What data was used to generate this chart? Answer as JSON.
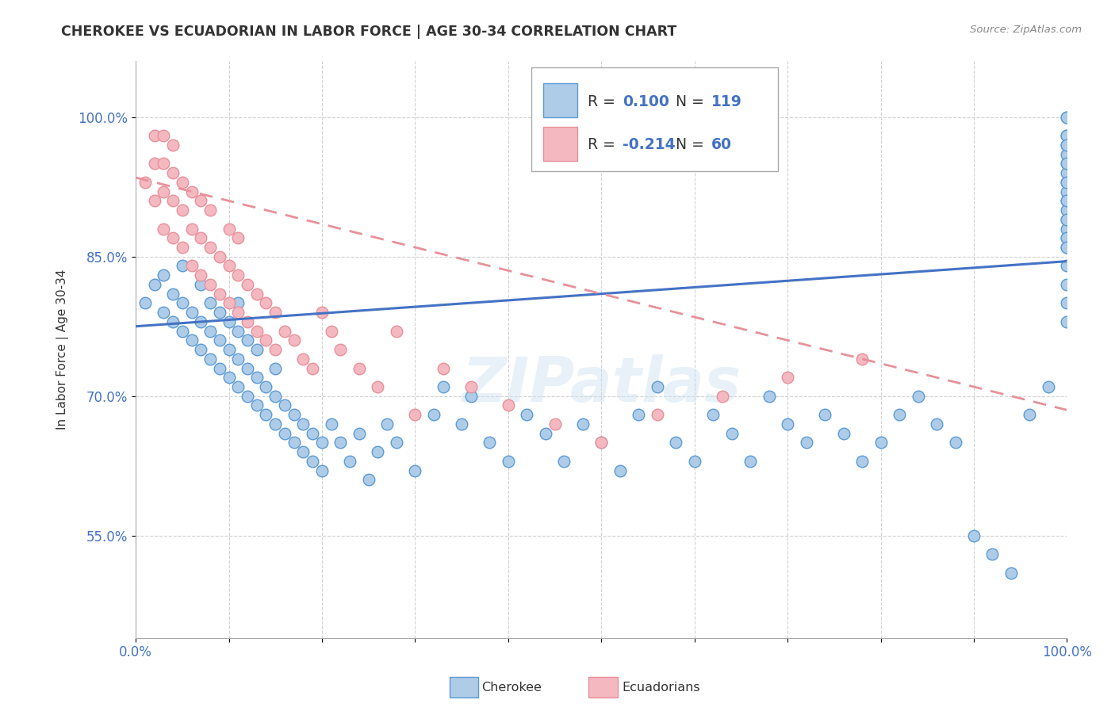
{
  "title": "CHEROKEE VS ECUADORIAN IN LABOR FORCE | AGE 30-34 CORRELATION CHART",
  "source": "Source: ZipAtlas.com",
  "ylabel": "In Labor Force | Age 30-34",
  "xlim": [
    0.0,
    1.0
  ],
  "ylim": [
    0.44,
    1.06
  ],
  "yticks": [
    0.55,
    0.7,
    0.85,
    1.0
  ],
  "ytick_labels": [
    "55.0%",
    "70.0%",
    "85.0%",
    "100.0%"
  ],
  "legend_R_blue": "0.100",
  "legend_N_blue": "119",
  "legend_R_pink": "-0.214",
  "legend_N_pink": "60",
  "color_blue": "#aecce8",
  "color_blue_edge": "#5b9bd5",
  "color_blue_line": "#4472c4",
  "color_pink": "#f4b8c1",
  "color_pink_edge": "#e8909a",
  "color_pink_line": "#e8909a",
  "watermark": "ZIPatlas",
  "background_color": "#ffffff",
  "grid_color": "#cccccc",
  "cherokee_x": [
    0.01,
    0.02,
    0.03,
    0.03,
    0.04,
    0.04,
    0.05,
    0.05,
    0.05,
    0.06,
    0.06,
    0.07,
    0.07,
    0.07,
    0.08,
    0.08,
    0.08,
    0.09,
    0.09,
    0.09,
    0.1,
    0.1,
    0.1,
    0.11,
    0.11,
    0.11,
    0.11,
    0.12,
    0.12,
    0.12,
    0.13,
    0.13,
    0.13,
    0.14,
    0.14,
    0.15,
    0.15,
    0.15,
    0.16,
    0.16,
    0.17,
    0.17,
    0.18,
    0.18,
    0.19,
    0.19,
    0.2,
    0.2,
    0.21,
    0.22,
    0.23,
    0.24,
    0.25,
    0.26,
    0.27,
    0.28,
    0.3,
    0.32,
    0.33,
    0.35,
    0.36,
    0.38,
    0.4,
    0.42,
    0.44,
    0.46,
    0.48,
    0.5,
    0.52,
    0.54,
    0.56,
    0.58,
    0.6,
    0.62,
    0.64,
    0.66,
    0.68,
    0.7,
    0.72,
    0.74,
    0.76,
    0.78,
    0.8,
    0.82,
    0.84,
    0.86,
    0.88,
    0.9,
    0.92,
    0.94,
    0.96,
    0.98,
    1.0,
    1.0,
    1.0,
    1.0,
    1.0,
    1.0,
    1.0,
    1.0,
    1.0,
    1.0,
    1.0,
    1.0,
    1.0,
    1.0,
    1.0,
    1.0,
    1.0,
    1.0,
    1.0,
    1.0,
    1.0,
    1.0,
    1.0,
    1.0,
    1.0,
    1.0,
    1.0
  ],
  "cherokee_y": [
    0.8,
    0.82,
    0.79,
    0.83,
    0.78,
    0.81,
    0.77,
    0.8,
    0.84,
    0.76,
    0.79,
    0.75,
    0.78,
    0.82,
    0.74,
    0.77,
    0.8,
    0.73,
    0.76,
    0.79,
    0.72,
    0.75,
    0.78,
    0.71,
    0.74,
    0.77,
    0.8,
    0.7,
    0.73,
    0.76,
    0.69,
    0.72,
    0.75,
    0.68,
    0.71,
    0.67,
    0.7,
    0.73,
    0.66,
    0.69,
    0.65,
    0.68,
    0.64,
    0.67,
    0.63,
    0.66,
    0.62,
    0.65,
    0.67,
    0.65,
    0.63,
    0.66,
    0.61,
    0.64,
    0.67,
    0.65,
    0.62,
    0.68,
    0.71,
    0.67,
    0.7,
    0.65,
    0.63,
    0.68,
    0.66,
    0.63,
    0.67,
    0.65,
    0.62,
    0.68,
    0.71,
    0.65,
    0.63,
    0.68,
    0.66,
    0.63,
    0.7,
    0.67,
    0.65,
    0.68,
    0.66,
    0.63,
    0.65,
    0.68,
    0.7,
    0.67,
    0.65,
    0.55,
    0.53,
    0.51,
    0.68,
    0.71,
    0.97,
    0.95,
    0.93,
    0.91,
    0.89,
    0.87,
    1.0,
    0.98,
    0.96,
    0.94,
    0.92,
    0.9,
    0.88,
    0.86,
    1.0,
    0.98,
    0.97,
    0.95,
    0.93,
    0.91,
    0.89,
    0.87,
    0.86,
    0.84,
    0.82,
    0.8,
    0.78
  ],
  "ecuadorian_x": [
    0.01,
    0.02,
    0.02,
    0.02,
    0.03,
    0.03,
    0.03,
    0.03,
    0.04,
    0.04,
    0.04,
    0.04,
    0.05,
    0.05,
    0.05,
    0.06,
    0.06,
    0.06,
    0.07,
    0.07,
    0.07,
    0.08,
    0.08,
    0.08,
    0.09,
    0.09,
    0.1,
    0.1,
    0.1,
    0.11,
    0.11,
    0.11,
    0.12,
    0.12,
    0.13,
    0.13,
    0.14,
    0.14,
    0.15,
    0.15,
    0.16,
    0.17,
    0.18,
    0.19,
    0.2,
    0.21,
    0.22,
    0.24,
    0.26,
    0.28,
    0.3,
    0.33,
    0.36,
    0.4,
    0.45,
    0.5,
    0.56,
    0.63,
    0.7,
    0.78
  ],
  "ecuadorian_y": [
    0.93,
    0.91,
    0.95,
    0.98,
    0.88,
    0.92,
    0.95,
    0.98,
    0.87,
    0.91,
    0.94,
    0.97,
    0.86,
    0.9,
    0.93,
    0.84,
    0.88,
    0.92,
    0.83,
    0.87,
    0.91,
    0.82,
    0.86,
    0.9,
    0.81,
    0.85,
    0.8,
    0.84,
    0.88,
    0.79,
    0.83,
    0.87,
    0.78,
    0.82,
    0.77,
    0.81,
    0.76,
    0.8,
    0.75,
    0.79,
    0.77,
    0.76,
    0.74,
    0.73,
    0.79,
    0.77,
    0.75,
    0.73,
    0.71,
    0.77,
    0.68,
    0.73,
    0.71,
    0.69,
    0.67,
    0.65,
    0.68,
    0.7,
    0.72,
    0.74
  ]
}
